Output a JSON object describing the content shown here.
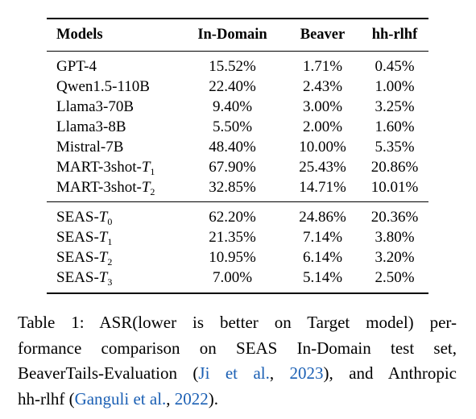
{
  "table": {
    "headers": [
      "Models",
      "In-Domain",
      "Beaver",
      "hh-rlhf"
    ],
    "groups": [
      [
        {
          "model": "GPT-4",
          "in_domain": "15.52%",
          "beaver": "1.71%",
          "hh_rlhf": "0.45%"
        },
        {
          "model": "Qwen1.5-110B",
          "in_domain": "22.40%",
          "beaver": "2.43%",
          "hh_rlhf": "1.00%"
        },
        {
          "model": "Llama3-70B",
          "in_domain": "9.40%",
          "beaver": "3.00%",
          "hh_rlhf": "3.25%"
        },
        {
          "model": "Llama3-8B",
          "in_domain": "5.50%",
          "beaver": "2.00%",
          "hh_rlhf": "1.60%"
        },
        {
          "model": "Mistral-7B",
          "in_domain": "48.40%",
          "beaver": "10.00%",
          "hh_rlhf": "5.35%"
        },
        {
          "model": "MART-3shot-",
          "model_var": "T",
          "model_sub": "1",
          "in_domain": "67.90%",
          "beaver": "25.43%",
          "hh_rlhf": "20.86%"
        },
        {
          "model": "MART-3shot-",
          "model_var": "T",
          "model_sub": "2",
          "in_domain": "32.85%",
          "beaver": "14.71%",
          "hh_rlhf": "10.01%"
        }
      ],
      [
        {
          "model": "SEAS-",
          "model_var": "T",
          "model_sub": "0",
          "in_domain": "62.20%",
          "beaver": "24.86%",
          "hh_rlhf": "20.36%"
        },
        {
          "model": "SEAS-",
          "model_var": "T",
          "model_sub": "1",
          "in_domain": "21.35%",
          "beaver": "7.14%",
          "hh_rlhf": "3.80%"
        },
        {
          "model": "SEAS-",
          "model_var": "T",
          "model_sub": "2",
          "in_domain": "10.95%",
          "beaver": "6.14%",
          "hh_rlhf": "3.20%"
        },
        {
          "model": "SEAS-",
          "model_var": "T",
          "model_sub": "3",
          "in_domain": "7.00%",
          "beaver": "5.14%",
          "hh_rlhf": "2.50%"
        }
      ]
    ]
  },
  "caption": {
    "line1": "Table 1: ASR(lower is better on Target model) per-",
    "line2": "formance comparison on SEAS In-Domain test set,",
    "line3_pre": "BeaverTails-Evaluation (",
    "line3_cite_author": "Ji et al.",
    "line3_sep": ", ",
    "line3_cite_year": "2023",
    "line3_post": "), and Anthropic",
    "line4_pre": "hh-rlhf (",
    "line4_cite_author": "Ganguli et al.",
    "line4_sep": ", ",
    "line4_cite_year": "2022",
    "line4_post": ")."
  },
  "colors": {
    "citation": "#1a5fb4",
    "text": "#000000"
  }
}
